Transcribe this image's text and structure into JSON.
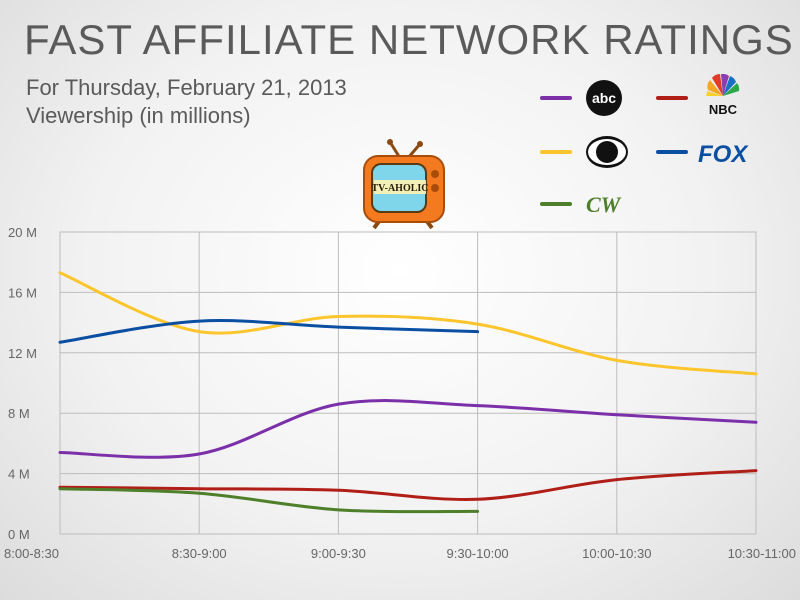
{
  "header": {
    "title": "FAST AFFILIATE NETWORK RATINGS",
    "subtitle_line1": "For Thursday, February 21, 2013",
    "subtitle_line2": "Viewership (in millions)"
  },
  "mascot": {
    "icon": "tv-icon",
    "label": "TV-AHOLIC"
  },
  "legend_logos": {
    "abc": "abc",
    "nbc": "NBC",
    "fox": "FOX",
    "cw": "CW"
  },
  "colors": {
    "abc": "#7b2fa8",
    "nbc": "#b01e17",
    "cbs": "#fcc52c",
    "fox": "#0b4fa3",
    "cw": "#4e7f2a",
    "grid": "#bdbdbd"
  },
  "chart_data": {
    "type": "line",
    "categories": [
      "8:00-8:30",
      "8:30-9:00",
      "9:00-9:30",
      "9:30-10:00",
      "10:00-10:30",
      "10:30-11:00"
    ],
    "y_tick_labels": [
      "0 M",
      "4 M",
      "8 M",
      "12 M",
      "16 M",
      "20 M"
    ],
    "ylim": [
      0,
      20
    ],
    "grid": true,
    "legend_position": "top-right",
    "series": [
      {
        "name": "abc",
        "color": "#7b2fa8",
        "values": [
          5.4,
          5.3,
          8.6,
          8.5,
          7.9,
          7.4
        ]
      },
      {
        "name": "NBC",
        "color": "#b01e17",
        "values": [
          3.1,
          3.0,
          2.9,
          2.3,
          3.6,
          4.2
        ]
      },
      {
        "name": "CBS",
        "color": "#fcc52c",
        "values": [
          17.3,
          13.4,
          14.4,
          13.9,
          11.5,
          10.6
        ]
      },
      {
        "name": "FOX",
        "color": "#0b4fa3",
        "values": [
          12.7,
          14.1,
          13.7,
          13.4,
          null,
          null
        ]
      },
      {
        "name": "CW",
        "color": "#4e7f2a",
        "values": [
          3.0,
          2.7,
          1.6,
          1.5,
          null,
          null
        ]
      }
    ]
  }
}
